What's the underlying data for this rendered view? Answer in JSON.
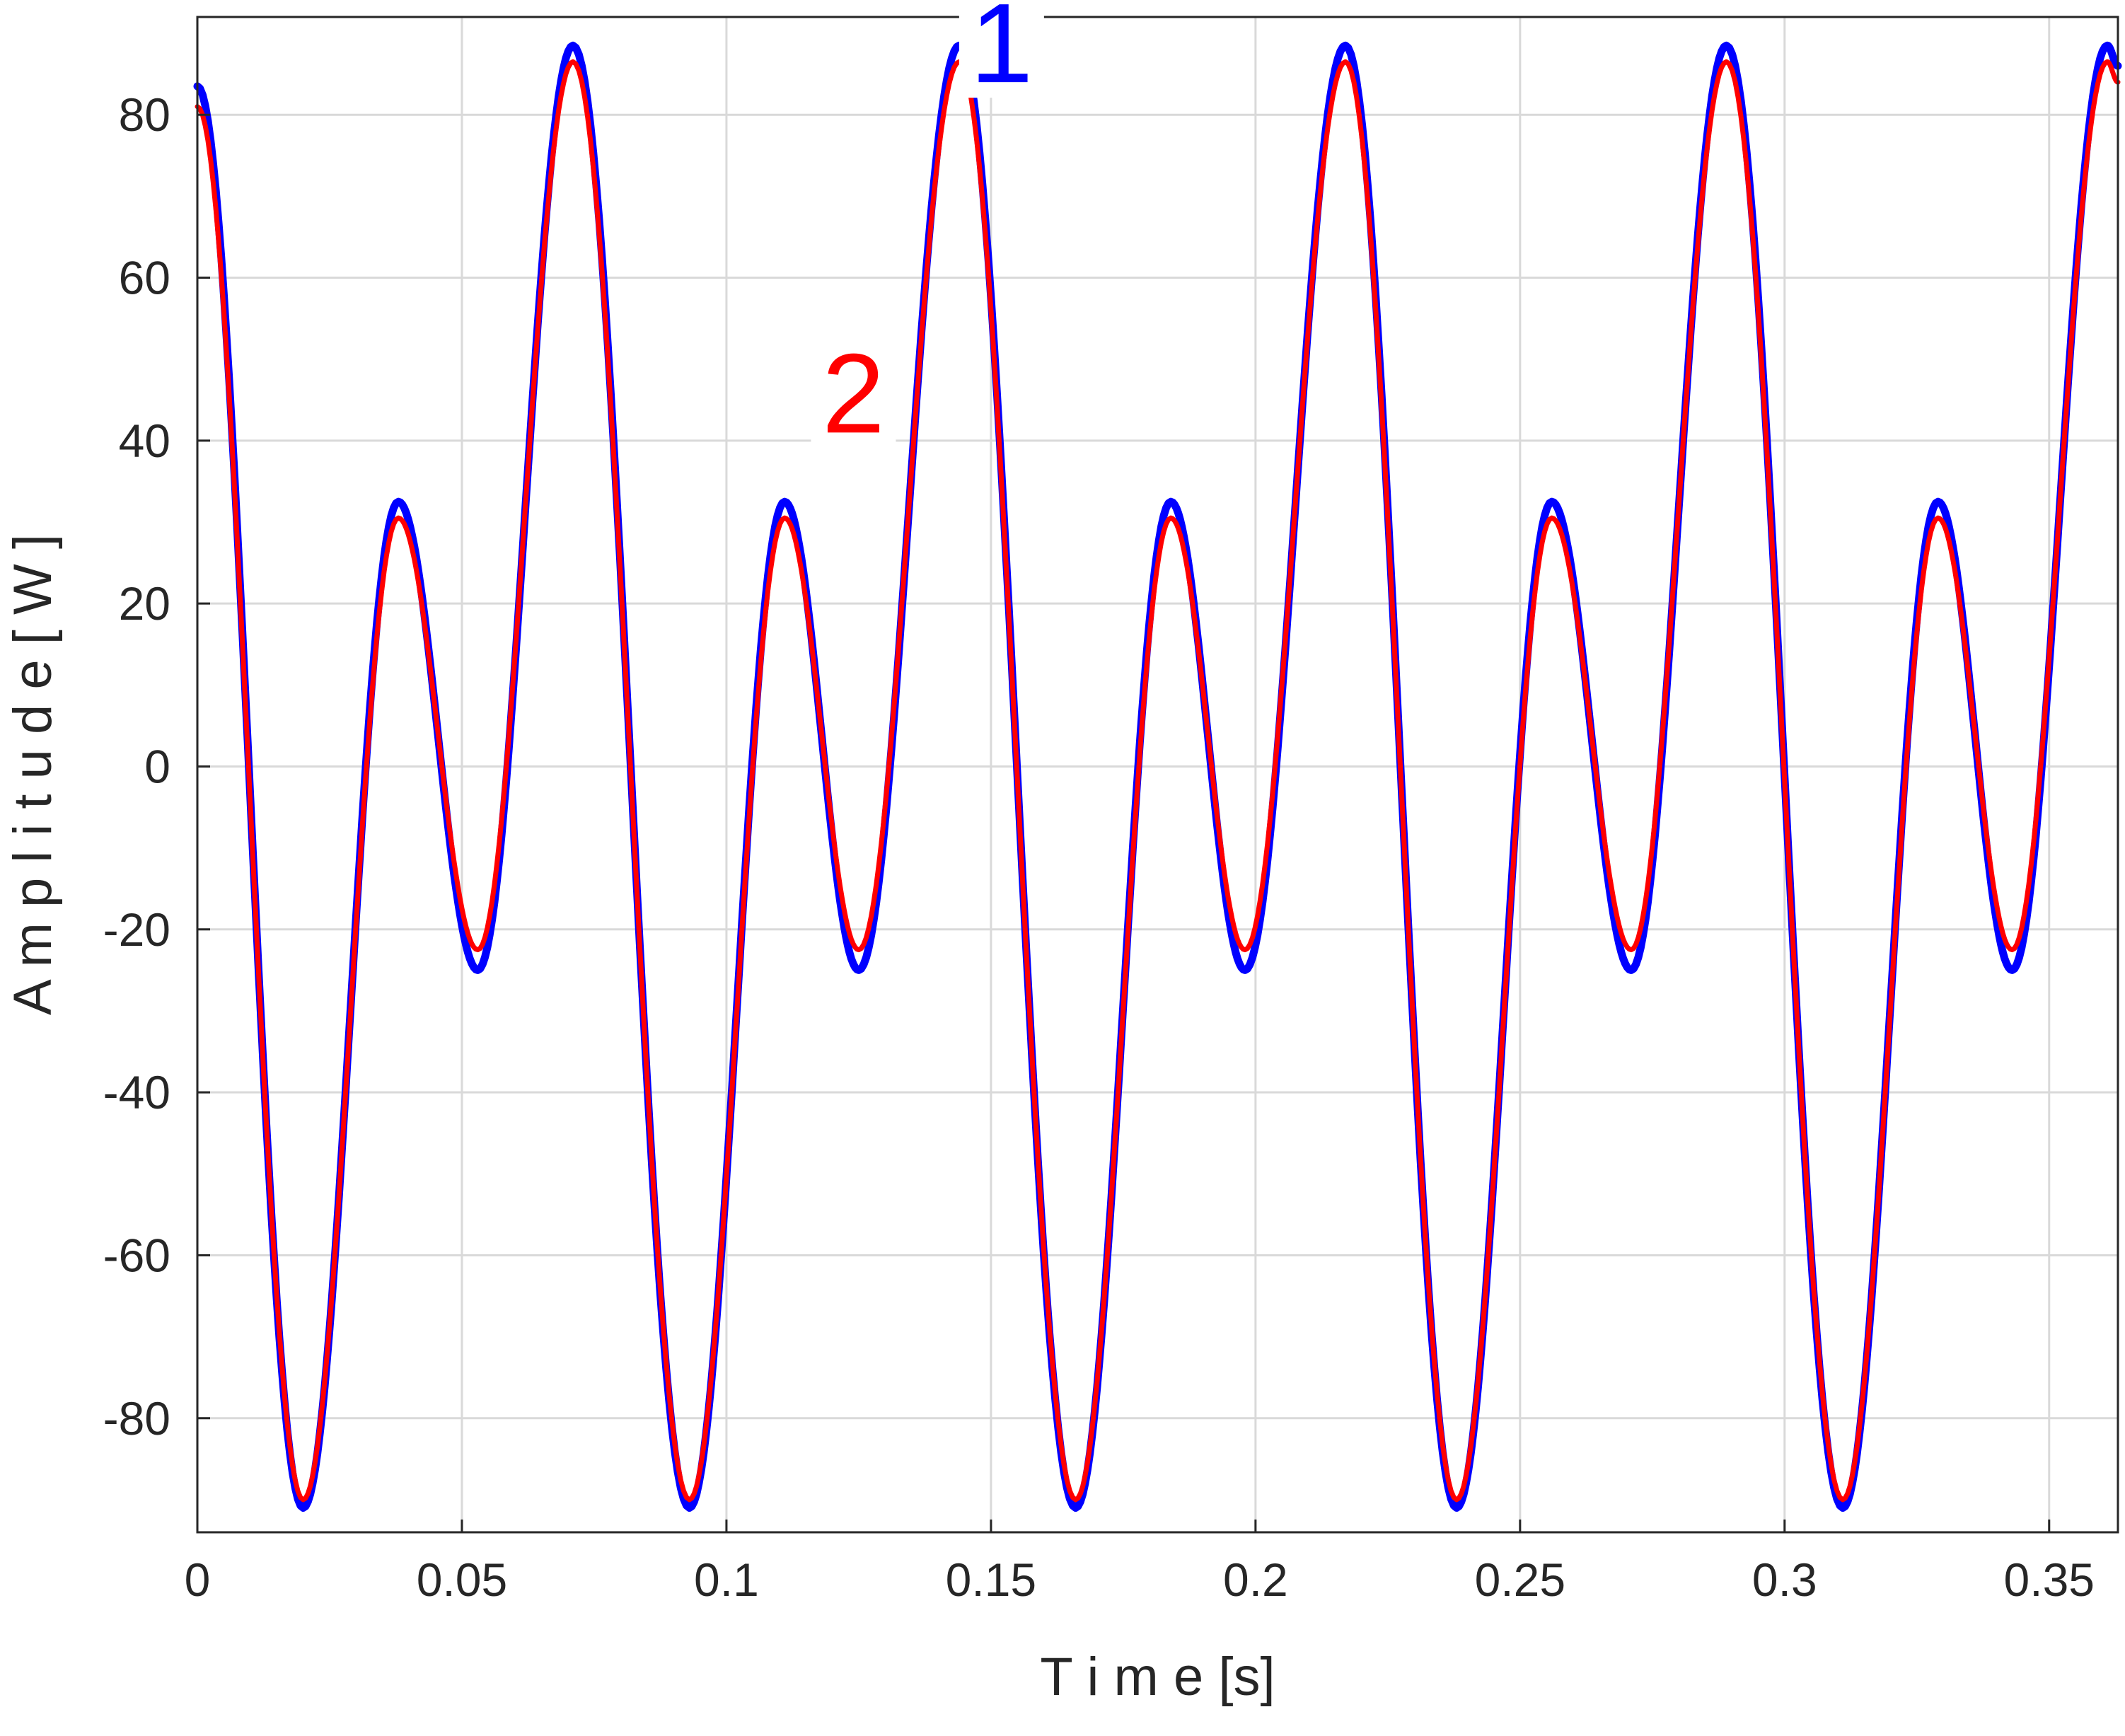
{
  "chart_data": {
    "type": "line",
    "title": "",
    "xlabel": "T i m e [s]",
    "ylabel": "A m p l i t u d e [ W ]",
    "xlim": [
      0,
      0.363
    ],
    "ylim": [
      -94,
      92
    ],
    "grid": true,
    "x_ticks": [
      0,
      0.05,
      0.1,
      0.15,
      0.2,
      0.25,
      0.3,
      0.35
    ],
    "x_tick_labels": [
      "0",
      "0.05",
      "0.1",
      "0.15",
      "0.2",
      "0.25",
      "0.3",
      "0.35"
    ],
    "y_ticks": [
      -80,
      -60,
      -40,
      -20,
      0,
      20,
      40,
      60,
      80
    ],
    "y_tick_labels": [
      "-80",
      "-60",
      "-40",
      "-20",
      "0",
      "20",
      "40",
      "60",
      "80"
    ],
    "series": [
      {
        "label": "1",
        "color": "#0000ff",
        "points": [
          [
            0,
            83.5
          ],
          [
            0.02,
            -91
          ],
          [
            0.038,
            32.5
          ],
          [
            0.053,
            -25
          ],
          [
            0.071,
            88.5
          ],
          [
            0.093,
            -91
          ],
          [
            0.111,
            32.5
          ],
          [
            0.125,
            -25
          ],
          [
            0.144,
            88.5
          ],
          [
            0.166,
            -91
          ],
          [
            0.184,
            32.5
          ],
          [
            0.198,
            -25
          ],
          [
            0.217,
            88.5
          ],
          [
            0.238,
            -91
          ],
          [
            0.256,
            32.5
          ],
          [
            0.271,
            -25
          ],
          [
            0.289,
            88.5
          ],
          [
            0.311,
            -91
          ],
          [
            0.329,
            32.5
          ],
          [
            0.343,
            -25
          ],
          [
            0.361,
            88.5
          ],
          [
            0.363,
            86
          ]
        ]
      },
      {
        "label": "2",
        "color": "#ff0000",
        "points": [
          [
            0,
            81
          ],
          [
            0.02,
            -90
          ],
          [
            0.038,
            30.5
          ],
          [
            0.053,
            -22.5
          ],
          [
            0.071,
            86.5
          ],
          [
            0.093,
            -90
          ],
          [
            0.111,
            30.5
          ],
          [
            0.125,
            -22.5
          ],
          [
            0.144,
            86.5
          ],
          [
            0.166,
            -90
          ],
          [
            0.184,
            30.5
          ],
          [
            0.198,
            -22.5
          ],
          [
            0.217,
            86.5
          ],
          [
            0.238,
            -90
          ],
          [
            0.256,
            30.5
          ],
          [
            0.271,
            -22.5
          ],
          [
            0.289,
            86.5
          ],
          [
            0.311,
            -90
          ],
          [
            0.329,
            30.5
          ],
          [
            0.343,
            -22.5
          ],
          [
            0.361,
            86.5
          ],
          [
            0.363,
            84
          ]
        ]
      }
    ]
  }
}
